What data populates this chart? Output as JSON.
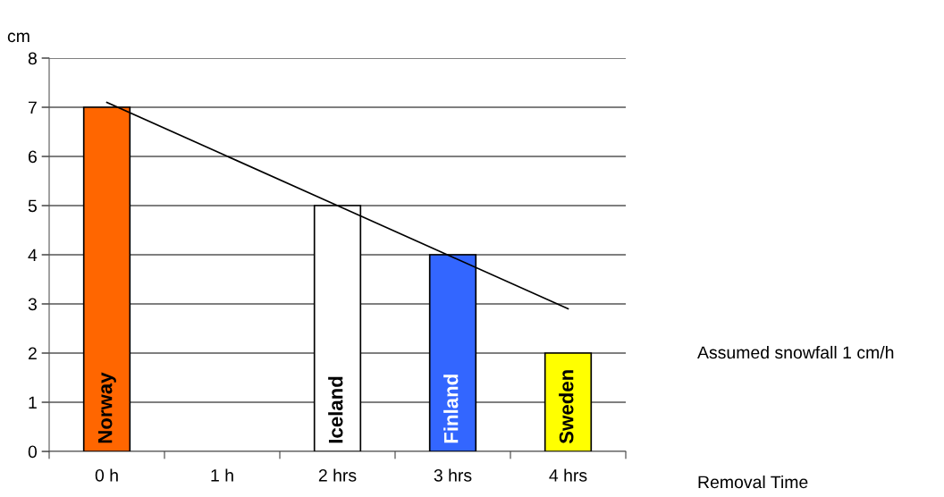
{
  "chart_data": {
    "type": "bar",
    "xlabel": "Removal Time",
    "ylabel": "cm",
    "categories": [
      "0 h",
      "1 h",
      "2 hrs",
      "3 hrs",
      "4 hrs"
    ],
    "series": [
      {
        "values": [
          7,
          null,
          5,
          4,
          2
        ],
        "colors": [
          "#ff6600",
          "#ffffff",
          "#ffffff",
          "#3366ff",
          "#ffff00"
        ],
        "value_labels": [
          "Norway",
          null,
          "Iceland",
          "Finland",
          "Sweden"
        ]
      },
      {
        "type": "line",
        "color": "#000000",
        "values": [
          7.1,
          6.05,
          5.0,
          3.95,
          2.9
        ]
      }
    ],
    "ylim": [
      0,
      8
    ],
    "yticks": [
      0,
      1,
      2,
      3,
      4,
      5,
      6,
      7,
      8
    ],
    "grid": "y",
    "legend": false,
    "annotations": [
      "Assumed snowfall 1 cm/h"
    ]
  }
}
